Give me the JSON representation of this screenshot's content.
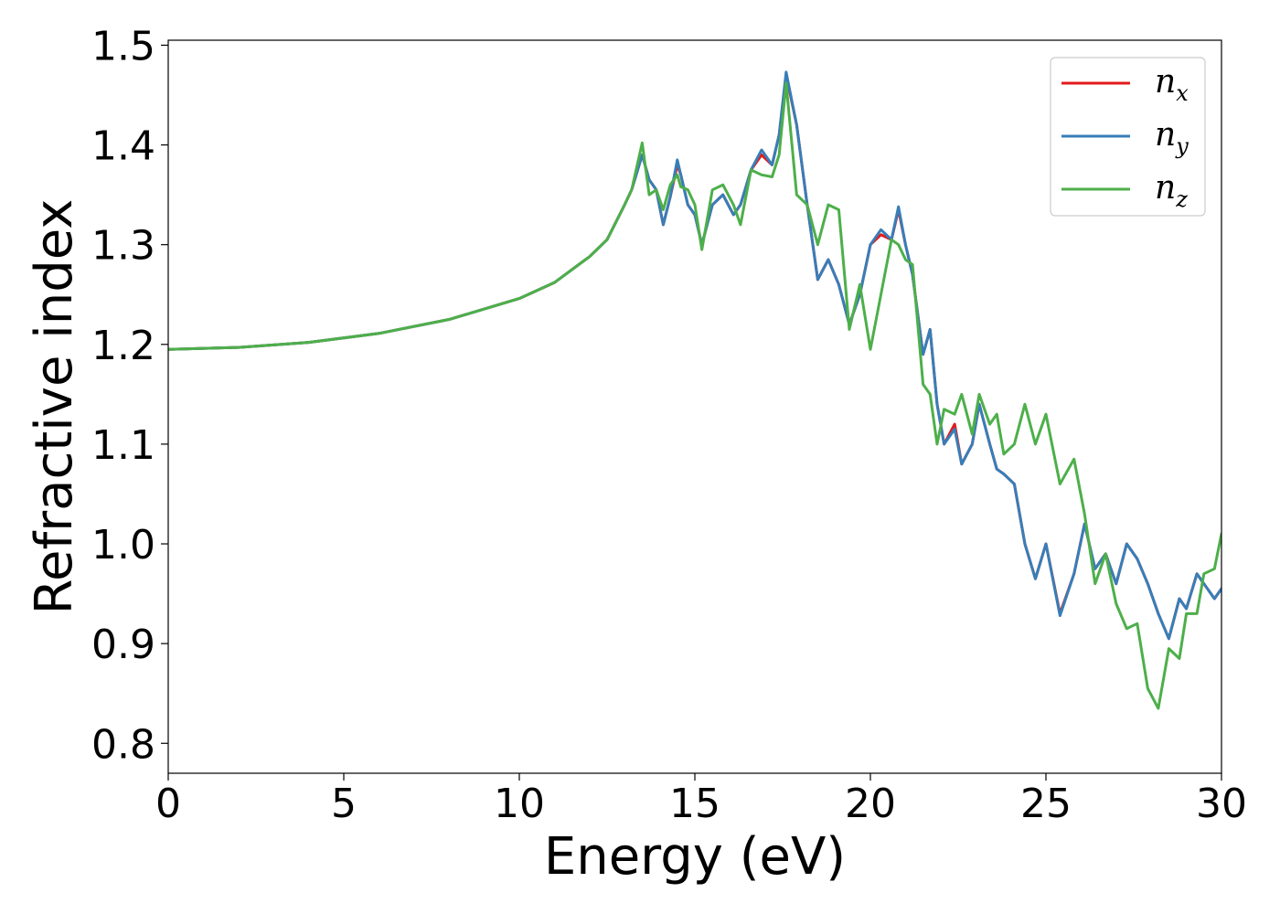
{
  "chart_data": {
    "type": "line",
    "xlabel": "Energy (eV)",
    "ylabel": "Refractive index",
    "xlim": [
      0,
      30
    ],
    "ylim": [
      0.77,
      1.505
    ],
    "xticks": [
      "0",
      "5",
      "10",
      "15",
      "20",
      "25",
      "30"
    ],
    "yticks": [
      "0.8",
      "0.9",
      "1.0",
      "1.1",
      "1.2",
      "1.3",
      "1.4",
      "1.5"
    ],
    "grid": false,
    "legend_position": "top-right",
    "series": [
      {
        "name": "n",
        "subscript": "x",
        "color": "#e41a1c",
        "x": [
          0,
          2,
          4,
          6,
          8,
          10,
          11,
          12,
          12.5,
          13,
          13.2,
          13.5,
          13.7,
          13.9,
          14.1,
          14.3,
          14.5,
          14.6,
          14.8,
          15.0,
          15.2,
          15.5,
          15.8,
          16.1,
          16.3,
          16.6,
          16.9,
          17.2,
          17.4,
          17.6,
          17.9,
          18.2,
          18.5,
          18.8,
          19.1,
          19.4,
          19.7,
          20.0,
          20.3,
          20.6,
          20.8,
          21.0,
          21.2,
          21.5,
          21.7,
          21.9,
          22.1,
          22.4,
          22.6,
          22.9,
          23.1,
          23.4,
          23.6,
          23.8,
          24.1,
          24.4,
          24.7,
          25.0,
          25.4,
          25.8,
          26.1,
          26.4,
          26.7,
          27.0,
          27.3,
          27.6,
          27.9,
          28.2,
          28.5,
          28.8,
          29.0,
          29.3,
          29.5,
          29.8,
          30.0
        ],
        "y": [
          1.195,
          1.197,
          1.202,
          1.211,
          1.225,
          1.246,
          1.262,
          1.288,
          1.305,
          1.34,
          1.355,
          1.39,
          1.365,
          1.355,
          1.32,
          1.348,
          1.38,
          1.37,
          1.34,
          1.33,
          1.3,
          1.34,
          1.35,
          1.33,
          1.34,
          1.375,
          1.39,
          1.38,
          1.41,
          1.47,
          1.42,
          1.34,
          1.265,
          1.285,
          1.26,
          1.22,
          1.25,
          1.3,
          1.31,
          1.305,
          1.335,
          1.3,
          1.27,
          1.19,
          1.215,
          1.14,
          1.1,
          1.12,
          1.08,
          1.1,
          1.14,
          1.1,
          1.075,
          1.07,
          1.06,
          1.0,
          0.965,
          1.0,
          0.93,
          0.97,
          1.02,
          0.975,
          0.99,
          0.96,
          1.0,
          0.985,
          0.96,
          0.93,
          0.905,
          0.945,
          0.935,
          0.97,
          0.96,
          0.945,
          0.955
        ]
      },
      {
        "name": "n",
        "subscript": "y",
        "color": "#377eb8",
        "x": [
          0,
          2,
          4,
          6,
          8,
          10,
          11,
          12,
          12.5,
          13,
          13.2,
          13.5,
          13.7,
          13.9,
          14.1,
          14.3,
          14.5,
          14.6,
          14.8,
          15.0,
          15.2,
          15.5,
          15.8,
          16.1,
          16.3,
          16.6,
          16.9,
          17.2,
          17.4,
          17.6,
          17.9,
          18.2,
          18.5,
          18.8,
          19.1,
          19.4,
          19.7,
          20.0,
          20.3,
          20.6,
          20.8,
          21.0,
          21.2,
          21.5,
          21.7,
          21.9,
          22.1,
          22.4,
          22.6,
          22.9,
          23.1,
          23.4,
          23.6,
          23.8,
          24.1,
          24.4,
          24.7,
          25.0,
          25.4,
          25.8,
          26.1,
          26.4,
          26.7,
          27.0,
          27.3,
          27.6,
          27.9,
          28.2,
          28.5,
          28.8,
          29.0,
          29.3,
          29.5,
          29.8,
          30.0
        ],
        "y": [
          1.195,
          1.197,
          1.202,
          1.211,
          1.225,
          1.246,
          1.262,
          1.288,
          1.305,
          1.34,
          1.355,
          1.39,
          1.365,
          1.355,
          1.32,
          1.348,
          1.385,
          1.37,
          1.34,
          1.33,
          1.3,
          1.34,
          1.35,
          1.33,
          1.34,
          1.375,
          1.395,
          1.38,
          1.41,
          1.473,
          1.42,
          1.34,
          1.265,
          1.285,
          1.26,
          1.22,
          1.25,
          1.3,
          1.315,
          1.305,
          1.338,
          1.3,
          1.27,
          1.19,
          1.215,
          1.14,
          1.1,
          1.115,
          1.08,
          1.1,
          1.14,
          1.1,
          1.075,
          1.07,
          1.06,
          1.0,
          0.965,
          1.0,
          0.928,
          0.97,
          1.02,
          0.975,
          0.99,
          0.96,
          1.0,
          0.985,
          0.96,
          0.93,
          0.905,
          0.945,
          0.935,
          0.97,
          0.96,
          0.945,
          0.955
        ]
      },
      {
        "name": "n",
        "subscript": "z",
        "color": "#4daf4a",
        "x": [
          0,
          2,
          4,
          6,
          8,
          10,
          11,
          12,
          12.5,
          13,
          13.2,
          13.5,
          13.7,
          13.9,
          14.1,
          14.3,
          14.5,
          14.6,
          14.8,
          15.0,
          15.2,
          15.5,
          15.8,
          16.1,
          16.3,
          16.6,
          16.9,
          17.2,
          17.4,
          17.6,
          17.9,
          18.2,
          18.5,
          18.8,
          19.1,
          19.4,
          19.7,
          20.0,
          20.3,
          20.6,
          20.8,
          21.0,
          21.2,
          21.5,
          21.7,
          21.9,
          22.1,
          22.4,
          22.6,
          22.9,
          23.1,
          23.4,
          23.6,
          23.8,
          24.1,
          24.4,
          24.7,
          25.0,
          25.4,
          25.8,
          26.1,
          26.4,
          26.7,
          27.0,
          27.3,
          27.6,
          27.9,
          28.2,
          28.5,
          28.8,
          29.0,
          29.3,
          29.5,
          29.8,
          30.0
        ],
        "y": [
          1.195,
          1.197,
          1.202,
          1.211,
          1.225,
          1.246,
          1.262,
          1.288,
          1.305,
          1.34,
          1.355,
          1.402,
          1.35,
          1.355,
          1.335,
          1.36,
          1.37,
          1.358,
          1.355,
          1.34,
          1.295,
          1.355,
          1.36,
          1.34,
          1.32,
          1.375,
          1.37,
          1.368,
          1.39,
          1.462,
          1.35,
          1.34,
          1.3,
          1.34,
          1.335,
          1.215,
          1.26,
          1.195,
          1.25,
          1.305,
          1.3,
          1.285,
          1.28,
          1.16,
          1.15,
          1.1,
          1.135,
          1.13,
          1.15,
          1.11,
          1.15,
          1.12,
          1.13,
          1.09,
          1.1,
          1.14,
          1.1,
          1.13,
          1.06,
          1.085,
          1.03,
          0.96,
          0.99,
          0.94,
          0.915,
          0.92,
          0.855,
          0.835,
          0.895,
          0.885,
          0.93,
          0.93,
          0.97,
          0.975,
          1.01
        ]
      }
    ]
  }
}
